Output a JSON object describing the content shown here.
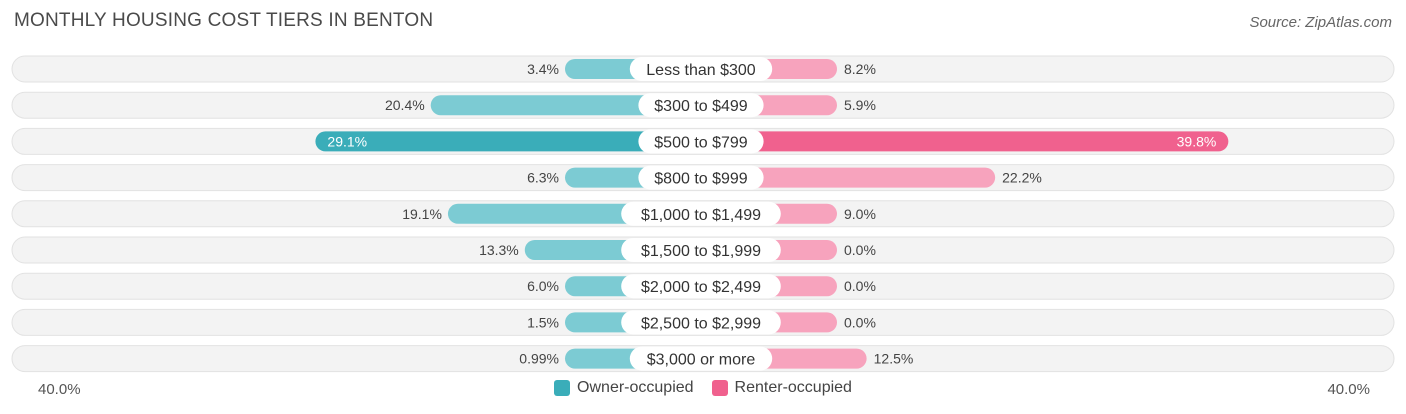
{
  "title": "MONTHLY HOUSING COST TIERS IN BENTON",
  "source": "Source: ZipAtlas.com",
  "chart_data": {
    "type": "bar",
    "orientation": "horizontal-diverging",
    "categories": [
      "Less than $300",
      "$300 to $499",
      "$500 to $799",
      "$800 to $999",
      "$1,000 to $1,499",
      "$1,500 to $1,999",
      "$2,000 to $2,499",
      "$2,500 to $2,999",
      "$3,000 or more"
    ],
    "series": [
      {
        "name": "Owner-occupied",
        "values": [
          3.4,
          20.4,
          29.1,
          6.3,
          19.1,
          13.3,
          6.0,
          1.5,
          0.99
        ],
        "labels": [
          "3.4%",
          "20.4%",
          "29.1%",
          "6.3%",
          "19.1%",
          "13.3%",
          "6.0%",
          "1.5%",
          "0.99%"
        ],
        "color": "#3aadb9",
        "color_light": "#7ccbd3"
      },
      {
        "name": "Renter-occupied",
        "values": [
          8.2,
          5.9,
          39.8,
          22.2,
          9.0,
          0.0,
          0.0,
          0.0,
          12.5
        ],
        "labels": [
          "8.2%",
          "5.9%",
          "39.8%",
          "22.2%",
          "9.0%",
          "0.0%",
          "0.0%",
          "0.0%",
          "12.5%"
        ],
        "color": "#f0618e",
        "color_light": "#f7a3bd"
      }
    ],
    "xlim": [
      -40,
      40
    ],
    "axis_labels": {
      "left": "40.0%",
      "right": "40.0%"
    },
    "legend_position": "bottom-center"
  }
}
